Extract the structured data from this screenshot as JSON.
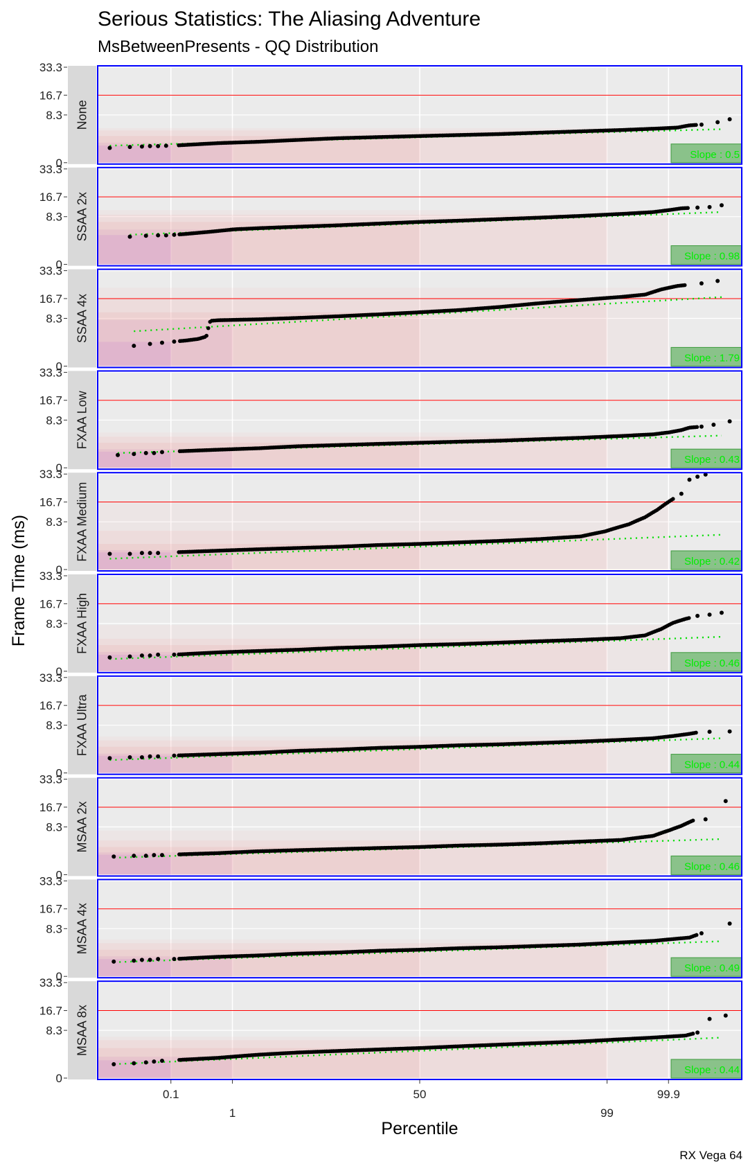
{
  "chart_data": {
    "type": "scatter",
    "title": "Serious Statistics: The Aliasing Adventure",
    "subtitle": "MsBetweenPresents - QQ Distribution",
    "xlabel": "Percentile",
    "ylabel": "Frame Time (ms)",
    "caption": "RX Vega 64",
    "x_scale": "normal-quantile (percentile)",
    "x_ticks": [
      {
        "label": "0.1",
        "value": 0.1
      },
      {
        "label": "1",
        "value": 1
      },
      {
        "label": "50",
        "value": 50
      },
      {
        "label": "99",
        "value": 99
      },
      {
        "label": "99.9",
        "value": 99.9
      }
    ],
    "x_range_z": [
      -4.0,
      4.0
    ],
    "y_ticks": [
      {
        "label": "0",
        "value": 0
      },
      {
        "label": "8.3",
        "value": 8.33
      },
      {
        "label": "16.7",
        "value": 16.67
      },
      {
        "label": "33.3",
        "value": 33.33
      }
    ],
    "ylim": [
      0,
      33.33
    ],
    "y_scale": "sqrt",
    "reference_line_ms": 16.67,
    "grid": true,
    "panels": [
      {
        "name": "None",
        "slope_label": "Slope : 0.5",
        "q_z": [
          -3.85,
          -3.6,
          -3.45,
          -3.35,
          -3.25,
          -3.15,
          -3.0,
          -2.5,
          -2.0,
          -1.5,
          -1.0,
          -0.5,
          0.0,
          0.5,
          1.0,
          1.5,
          2.0,
          2.5,
          3.0,
          3.2,
          3.35,
          3.5,
          3.7,
          3.85
        ],
        "q_ms": [
          0.8,
          0.9,
          0.95,
          1.0,
          1.0,
          1.05,
          1.1,
          1.4,
          1.6,
          1.9,
          2.2,
          2.4,
          2.6,
          2.8,
          3.0,
          3.3,
          3.6,
          3.9,
          4.3,
          4.5,
          5.1,
          5.3,
          6.0,
          6.9
        ]
      },
      {
        "name": "SSAA 2x",
        "slope_label": "Slope : 0.98",
        "q_z": [
          -3.6,
          -3.4,
          -3.25,
          -3.15,
          -3.05,
          -2.9,
          -2.6,
          -2.3,
          -2.0,
          -1.5,
          -1.0,
          -0.5,
          0.0,
          0.5,
          1.0,
          1.5,
          2.0,
          2.5,
          2.9,
          3.1,
          3.25,
          3.45,
          3.6,
          3.75
        ],
        "q_ms": [
          2.8,
          3.0,
          3.1,
          3.1,
          3.2,
          3.4,
          3.9,
          4.5,
          4.8,
          5.2,
          5.6,
          6.1,
          6.6,
          7.0,
          7.5,
          8.0,
          8.6,
          9.3,
          10.0,
          10.8,
          11.5,
          11.8,
          12.0,
          12.8
        ]
      },
      {
        "name": "SSAA 4x",
        "slope_label": "Slope : 1.79",
        "q_z": [
          -3.55,
          -3.35,
          -3.2,
          -3.05,
          -2.9,
          -2.75,
          -2.65,
          -2.6,
          -2.5,
          -2.0,
          -1.5,
          -1.0,
          -0.5,
          0.0,
          0.5,
          1.0,
          1.5,
          2.0,
          2.5,
          2.8,
          3.0,
          3.2,
          3.5,
          3.7
        ],
        "q_ms": [
          1.5,
          1.8,
          2.0,
          2.2,
          2.4,
          2.7,
          3.2,
          7.5,
          7.7,
          8.0,
          8.5,
          9.1,
          9.8,
          10.6,
          11.5,
          12.8,
          14.5,
          16.0,
          17.5,
          18.7,
          21.5,
          23.5,
          25.0,
          26.5
        ]
      },
      {
        "name": "FXAA Low",
        "slope_label": "Slope : 0.43",
        "q_z": [
          -3.75,
          -3.55,
          -3.4,
          -3.3,
          -3.2,
          -3.0,
          -2.5,
          -2.0,
          -1.5,
          -1.0,
          -0.5,
          0.0,
          0.5,
          1.0,
          1.5,
          2.0,
          2.5,
          2.9,
          3.1,
          3.25,
          3.35,
          3.5,
          3.65,
          3.85
        ],
        "q_ms": [
          0.6,
          0.7,
          0.8,
          0.8,
          0.9,
          1.0,
          1.2,
          1.4,
          1.7,
          1.9,
          2.1,
          2.3,
          2.5,
          2.7,
          3.0,
          3.3,
          3.7,
          4.1,
          4.6,
          5.2,
          5.9,
          6.2,
          6.8,
          7.9
        ]
      },
      {
        "name": "FXAA Medium",
        "slope_label": "Slope : 0.42",
        "q_z": [
          -3.85,
          -3.6,
          -3.45,
          -3.35,
          -3.25,
          -3.0,
          -2.5,
          -2.0,
          -1.5,
          -1.0,
          -0.5,
          0.0,
          0.5,
          1.0,
          1.5,
          2.0,
          2.3,
          2.6,
          2.8,
          2.95,
          3.1,
          3.25,
          3.35,
          3.45,
          3.55
        ],
        "q_ms": [
          0.9,
          0.9,
          1.0,
          1.0,
          1.0,
          1.1,
          1.3,
          1.5,
          1.7,
          1.9,
          2.2,
          2.4,
          2.7,
          3.0,
          3.4,
          4.0,
          5.3,
          7.5,
          10.0,
          13.0,
          17.0,
          21.0,
          29.5,
          31.5,
          33.0
        ]
      },
      {
        "name": "FXAA High",
        "slope_label": "Slope : 0.46",
        "q_z": [
          -3.85,
          -3.6,
          -3.45,
          -3.35,
          -3.25,
          -3.05,
          -2.5,
          -2.0,
          -1.5,
          -1.0,
          -0.5,
          0.0,
          0.5,
          1.0,
          1.5,
          2.0,
          2.5,
          2.8,
          3.0,
          3.15,
          3.3,
          3.45,
          3.6,
          3.75
        ],
        "q_ms": [
          0.7,
          0.8,
          0.9,
          0.9,
          1.0,
          1.0,
          1.3,
          1.5,
          1.7,
          2.0,
          2.2,
          2.5,
          2.7,
          3.0,
          3.3,
          3.6,
          4.0,
          4.7,
          6.5,
          8.6,
          10.0,
          11.2,
          11.7,
          12.5
        ]
      },
      {
        "name": "FXAA Ultra",
        "slope_label": "Slope : 0.44",
        "q_z": [
          -3.85,
          -3.6,
          -3.45,
          -3.35,
          -3.25,
          -3.05,
          -2.5,
          -2.0,
          -1.5,
          -1.0,
          -0.5,
          0.0,
          0.5,
          1.0,
          1.5,
          2.0,
          2.5,
          2.9,
          3.15,
          3.35,
          3.45,
          3.6,
          3.85
        ],
        "q_ms": [
          0.8,
          0.9,
          0.9,
          1.0,
          1.0,
          1.1,
          1.3,
          1.5,
          1.8,
          2.0,
          2.3,
          2.5,
          2.8,
          3.0,
          3.3,
          3.6,
          4.0,
          4.4,
          5.0,
          5.6,
          6.0,
          6.2,
          6.3
        ]
      },
      {
        "name": "MSAA 2x",
        "slope_label": "Slope : 0.46",
        "q_z": [
          -3.8,
          -3.55,
          -3.4,
          -3.3,
          -3.2,
          -3.0,
          -2.5,
          -2.0,
          -1.5,
          -1.0,
          -0.5,
          0.0,
          0.5,
          1.0,
          1.5,
          2.0,
          2.5,
          2.9,
          3.1,
          3.25,
          3.4,
          3.55,
          3.8
        ],
        "q_ms": [
          1.2,
          1.3,
          1.3,
          1.4,
          1.4,
          1.5,
          1.7,
          2.0,
          2.2,
          2.4,
          2.6,
          2.8,
          3.1,
          3.3,
          3.6,
          4.0,
          4.4,
          5.5,
          7.2,
          8.7,
          10.8,
          11.2,
          19.8
        ]
      },
      {
        "name": "MSAA 4x",
        "slope_label": "Slope : 0.49",
        "q_z": [
          -3.8,
          -3.55,
          -3.45,
          -3.35,
          -3.25,
          -3.05,
          -2.5,
          -2.0,
          -1.5,
          -1.0,
          -0.5,
          0.0,
          0.5,
          1.0,
          1.5,
          2.0,
          2.5,
          2.9,
          3.15,
          3.35,
          3.5,
          3.85
        ],
        "q_ms": [
          0.8,
          0.9,
          1.0,
          1.0,
          1.1,
          1.1,
          1.4,
          1.6,
          1.9,
          2.1,
          2.4,
          2.6,
          2.9,
          3.1,
          3.4,
          3.7,
          4.2,
          4.6,
          5.1,
          5.5,
          6.8,
          10.2
        ]
      },
      {
        "name": "MSAA 8x",
        "slope_label": "Slope : 0.44",
        "q_z": [
          -3.8,
          -3.55,
          -3.4,
          -3.3,
          -3.2,
          -3.0,
          -2.5,
          -2.0,
          -1.5,
          -1.0,
          -0.5,
          0.0,
          0.5,
          1.0,
          1.5,
          2.0,
          2.5,
          2.9,
          3.1,
          3.3,
          3.45,
          3.6,
          3.8
        ],
        "q_ms": [
          0.7,
          0.8,
          0.9,
          1.0,
          1.1,
          1.2,
          1.5,
          2.0,
          2.4,
          2.7,
          3.0,
          3.3,
          3.7,
          4.1,
          4.5,
          4.9,
          5.5,
          6.0,
          6.3,
          6.6,
          7.6,
          12.8,
          14.3
        ]
      }
    ]
  }
}
